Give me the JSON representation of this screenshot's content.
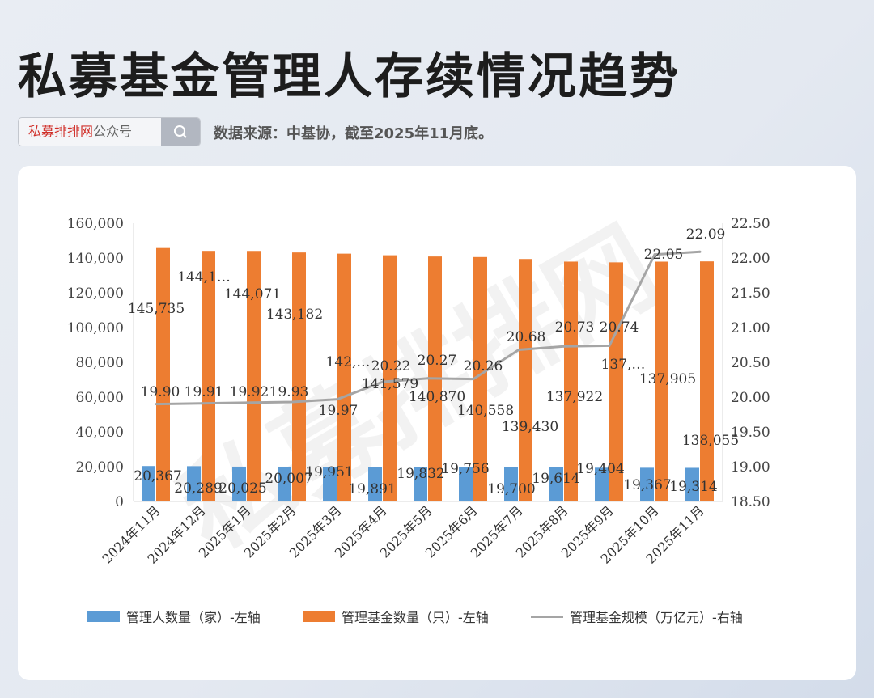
{
  "title": "私募基金管理人存续情况趋势",
  "search": {
    "brand": "私募排排网",
    "suffix": "公众号",
    "icon": "search-icon"
  },
  "source": "数据来源：中基协，截至2025年11月底。",
  "watermark": "私募排排网",
  "colors": {
    "managers": "#5b9bd5",
    "funds": "#ed7d31",
    "scale": "#a5a5a5"
  },
  "chart_data": {
    "type": "bar",
    "categories": [
      "2024年11月",
      "2024年12月",
      "2025年1月",
      "2025年2月",
      "2025年3月",
      "2025年4月",
      "2025年5月",
      "2025年6月",
      "2025年7月",
      "2025年8月",
      "2025年9月",
      "2025年10月",
      "2025年11月"
    ],
    "series": [
      {
        "name": "管理人数量（家）-左轴",
        "type": "bar",
        "axis": "left",
        "values": [
          20367,
          20289,
          20025,
          20007,
          19951,
          19891,
          19832,
          19756,
          19700,
          19614,
          19404,
          19367,
          19314
        ],
        "labels": [
          "20,367",
          "20,289",
          "20,025",
          "20,007",
          "19,951",
          "19,891",
          "19,832",
          "19,756",
          "19,700",
          "19,614",
          "19,404",
          "19,367",
          "19,314"
        ]
      },
      {
        "name": "管理基金数量（只）-左轴",
        "type": "bar",
        "axis": "left",
        "values": [
          145735,
          144100,
          144071,
          143182,
          142500,
          141579,
          140870,
          140558,
          139430,
          137922,
          137500,
          137905,
          138055
        ],
        "labels": [
          "145,735",
          "144,1…",
          "144,071",
          "143,182",
          "142,…",
          "141,579",
          "140,870",
          "140,558",
          "139,430",
          "137,922",
          "137,…",
          "137,905",
          "138,055"
        ]
      },
      {
        "name": "管理基金规模（万亿元）-右轴",
        "type": "line",
        "axis": "right",
        "values": [
          19.9,
          19.91,
          19.92,
          19.93,
          19.97,
          20.22,
          20.27,
          20.26,
          20.68,
          20.73,
          20.74,
          22.05,
          22.09
        ],
        "labels": [
          "19.90",
          "19.91",
          "19.92",
          "19.93",
          "19.97",
          "20.22",
          "20.27",
          "20.26",
          "20.68",
          "20.73",
          "20.74",
          "22.05",
          "22.09"
        ]
      }
    ],
    "y_left": {
      "min": 0,
      "max": 160000,
      "ticks": [
        "0",
        "20,000",
        "40,000",
        "60,000",
        "80,000",
        "100,000",
        "120,000",
        "140,000",
        "160,000"
      ]
    },
    "y_right": {
      "min": 18.5,
      "max": 22.5,
      "ticks": [
        "18.50",
        "19.00",
        "19.50",
        "20.00",
        "20.50",
        "21.00",
        "21.50",
        "22.00",
        "22.50"
      ]
    },
    "legend_position": "bottom",
    "grid": false
  }
}
